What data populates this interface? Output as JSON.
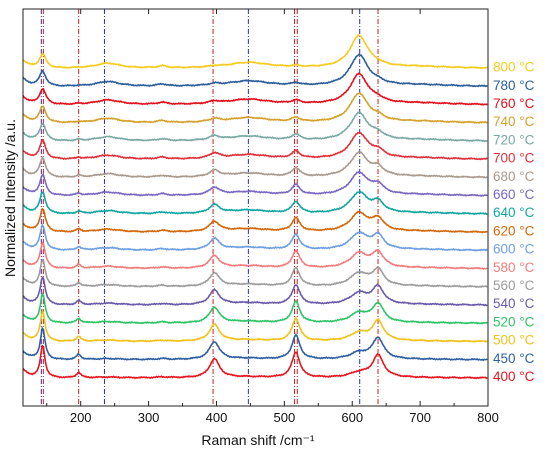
{
  "chart_data": {
    "type": "line",
    "xlabel": "Raman shift /cm⁻¹",
    "ylabel": "Normalized Intensity /a.u.",
    "xlim": [
      115,
      800
    ],
    "x_ticks": [
      200,
      300,
      400,
      500,
      600,
      700,
      800
    ],
    "x_tick_labels": [
      "200",
      "300",
      "400",
      "500",
      "600",
      "700",
      "800"
    ],
    "y_ticks_shown": false,
    "grid": false,
    "legend": "right",
    "reference_lines": [
      {
        "x": 142,
        "color": "#2a2ad0",
        "style": "dash-dot"
      },
      {
        "x": 145,
        "color": "#d02020",
        "style": "dash-dot"
      },
      {
        "x": 197,
        "color": "#d02020",
        "style": "dash-dot"
      },
      {
        "x": 235,
        "color": "#2a2ad0",
        "style": "dash-dot"
      },
      {
        "x": 395,
        "color": "#d02020",
        "style": "dash-dot"
      },
      {
        "x": 447,
        "color": "#2a2ad0",
        "style": "dash-dot"
      },
      {
        "x": 515,
        "color": "#d02020",
        "style": "dash-dot"
      },
      {
        "x": 519,
        "color": "#d02020",
        "style": "dash-dot"
      },
      {
        "x": 611,
        "color": "#2a2ad0",
        "style": "dash-dot"
      },
      {
        "x": 638,
        "color": "#d02020",
        "style": "dash-dot"
      }
    ],
    "series": [
      {
        "name": "400 °C",
        "color": "#e8141e",
        "phase": 0.0
      },
      {
        "name": "450 °C",
        "color": "#2f5f9e",
        "phase": 0.06
      },
      {
        "name": "500 °C",
        "color": "#f0c21a",
        "phase": 0.12
      },
      {
        "name": "520 °C",
        "color": "#2ec466",
        "phase": 0.18
      },
      {
        "name": "540 °C",
        "color": "#6a5aa8",
        "phase": 0.24
      },
      {
        "name": "560 °C",
        "color": "#9c9c9c",
        "phase": 0.3
      },
      {
        "name": "580 °C",
        "color": "#f07c7c",
        "phase": 0.36
      },
      {
        "name": "600 °C",
        "color": "#6e9fe0",
        "phase": 0.42
      },
      {
        "name": "620 °C",
        "color": "#d2680a",
        "phase": 0.5
      },
      {
        "name": "640 °C",
        "color": "#12a6a0",
        "phase": 0.58
      },
      {
        "name": "660 °C",
        "color": "#7a68c0",
        "phase": 0.64
      },
      {
        "name": "680 °C",
        "color": "#a89a8e",
        "phase": 0.7
      },
      {
        "name": "700 °C",
        "color": "#e0303a",
        "phase": 0.76
      },
      {
        "name": "720 °C",
        "color": "#7aa8a4",
        "phase": 0.82
      },
      {
        "name": "740 °C",
        "color": "#d4a12a",
        "phase": 0.88
      },
      {
        "name": "760 °C",
        "color": "#e3101c",
        "phase": 0.92
      },
      {
        "name": "780 °C",
        "color": "#2c5e98",
        "phase": 0.96
      },
      {
        "name": "800 °C",
        "color": "#f5cc1e",
        "phase": 1.0
      }
    ]
  }
}
